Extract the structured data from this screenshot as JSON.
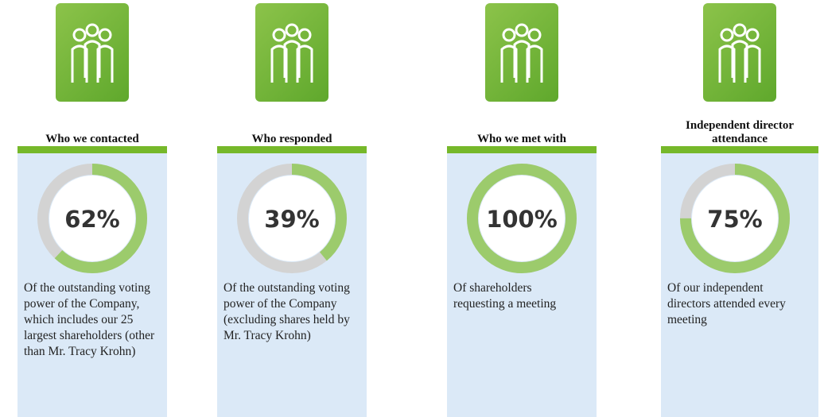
{
  "chart_data": [
    {
      "type": "donut",
      "title": "Who we contacted",
      "value": 62,
      "value_label": "62%",
      "description": "Of the outstanding voting power of the Company, which includes our 25 largest shareholders (other than Mr. Tracy Krohn)",
      "color": "#9ccb6c",
      "track_color": "#d3d3d3"
    },
    {
      "type": "donut",
      "title": "Who responded",
      "value": 39,
      "value_label": "39%",
      "description": "Of the outstanding voting power of the Company (excluding shares held by Mr. Tracy Krohn)",
      "color": "#9ccb6c",
      "track_color": "#d3d3d3"
    },
    {
      "type": "donut",
      "title": "Who we met with",
      "value": 100,
      "value_label": "100%",
      "description": "Of shareholders requesting a meeting",
      "color": "#9ccb6c",
      "track_color": "#d3d3d3"
    },
    {
      "type": "donut",
      "title": "Independent director attendance",
      "value": 75,
      "value_label": "75%",
      "description": "Of our independent directors attended every meeting",
      "color": "#9ccb6c",
      "track_color": "#d3d3d3"
    }
  ]
}
